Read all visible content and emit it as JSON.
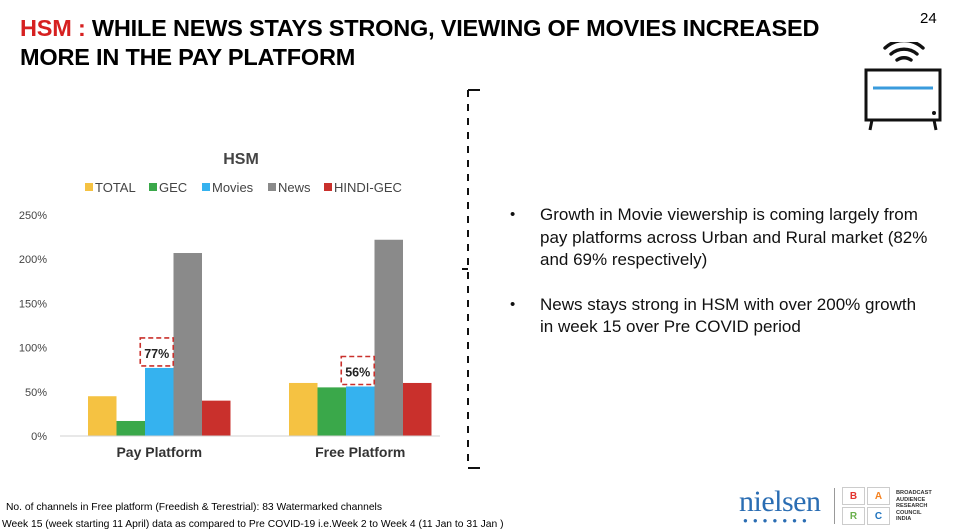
{
  "header": {
    "title_accent": "HSM :",
    "title_line1": "WHILE NEWS STAYS STRONG, VIEWING OF MOVIES INCREASED",
    "title_line2": "MORE IN THE PAY PLATFORM",
    "page_number": "24"
  },
  "chart_data": {
    "type": "bar",
    "title": "HSM",
    "categories": [
      "Pay Platform",
      "Free Platform"
    ],
    "series": [
      {
        "name": "TOTAL",
        "color": "#f5c242",
        "values": [
          45,
          60
        ]
      },
      {
        "name": "GEC",
        "color": "#3aa84a",
        "values": [
          17,
          55
        ]
      },
      {
        "name": "Movies",
        "color": "#35b2ef",
        "values": [
          77,
          56
        ]
      },
      {
        "name": "News",
        "color": "#8a8a8a",
        "values": [
          207,
          222
        ]
      },
      {
        "name": "HINDI-GEC",
        "color": "#c9302c",
        "values": [
          40,
          60
        ]
      }
    ],
    "annotations": [
      {
        "category": "Pay Platform",
        "series": "Movies",
        "label": "77%"
      },
      {
        "category": "Free Platform",
        "series": "Movies",
        "label": "56%"
      }
    ],
    "yticks": [
      "0%",
      "50%",
      "100%",
      "150%",
      "200%",
      "250%"
    ],
    "ylim": [
      0,
      250
    ],
    "legend_position": "top",
    "grid": false
  },
  "bullets": [
    "Growth in Movie viewership is coming largely from pay platforms across Urban and Rural market (82% and 69% respectively)",
    "News stays strong in HSM with over 200% growth in week 15 over Pre COVID period"
  ],
  "footnotes": [
    "No. of channels in Free platform (Freedish & Terestrial): 83 Watermarked channels",
    "Week 15 (week starting 11 April) data as compared to Pre COVID-19 i.e.Week 2 to Week 4 (11 Jan to 31 Jan )"
  ],
  "logos": {
    "nielsen": "nielsen",
    "barc_letters": [
      "B",
      "A",
      "R",
      "C"
    ],
    "barc_text": [
      "BROADCAST",
      "AUDIENCE",
      "RESEARCH",
      "COUNCIL",
      "INDIA"
    ]
  }
}
